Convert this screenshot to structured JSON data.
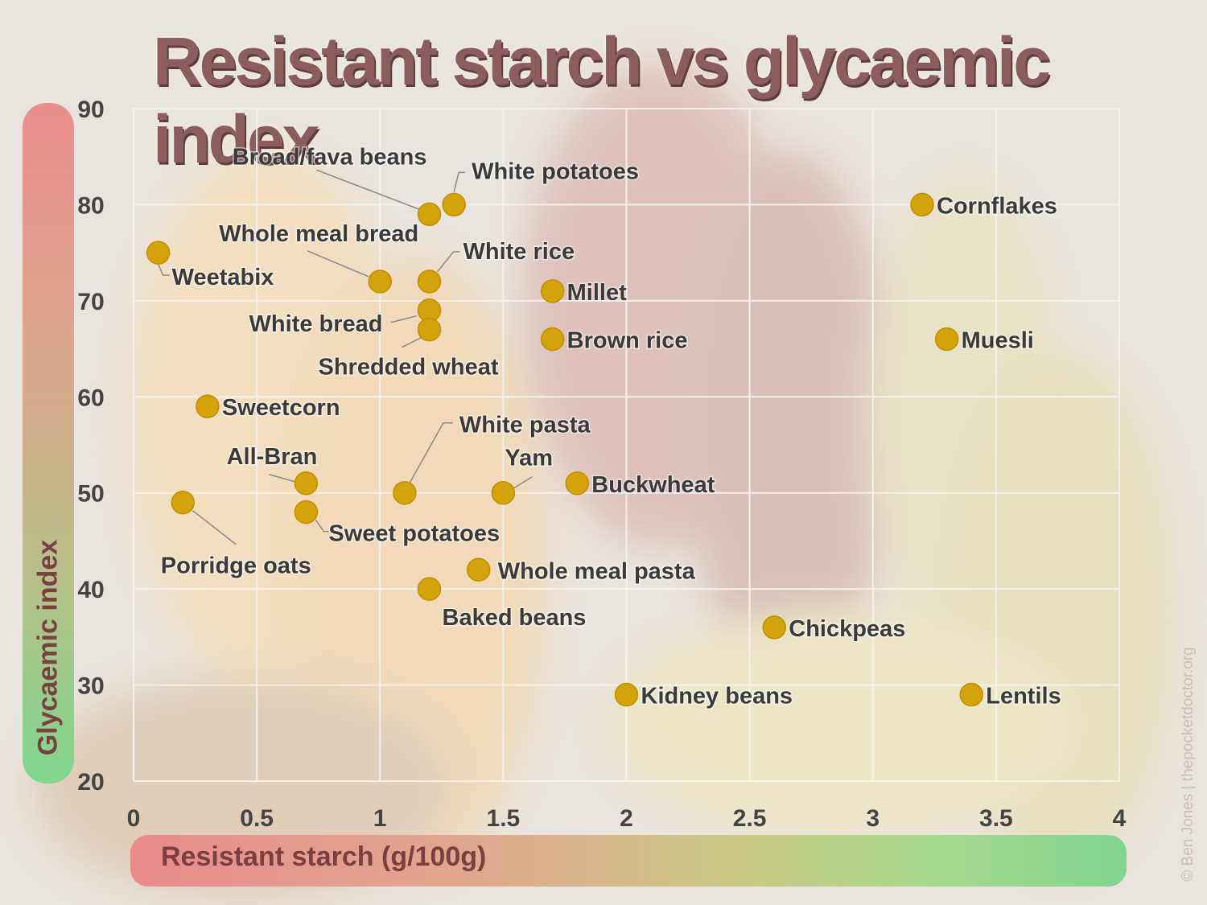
{
  "title": "Resistant starch vs glycaemic index",
  "credit": "© Ben Jones | thepocketdoctor.org",
  "colors": {
    "point": "#d4a20a",
    "point_edge": "#c08f00",
    "label": "#3a3a3a",
    "leader": "#8a8a8a",
    "grid": "#f4f1ec",
    "axis_label": "#7a3f41"
  },
  "chart_data": {
    "type": "scatter",
    "title": "Resistant starch vs glycaemic index",
    "xlabel": "Resistant starch (g/100g)",
    "ylabel": "Glycaemic index",
    "xlim": [
      0,
      4
    ],
    "ylim": [
      20,
      90
    ],
    "xticks": [
      "0",
      "0.5",
      "1",
      "1.5",
      "2",
      "2.5",
      "3",
      "3.5",
      "4"
    ],
    "yticks": [
      "20",
      "30",
      "40",
      "50",
      "60",
      "70",
      "80",
      "90"
    ],
    "grid": true,
    "points": [
      {
        "name": "Broad/fava beans",
        "x": 1.2,
        "y": 79
      },
      {
        "name": "White potatoes",
        "x": 1.3,
        "y": 80
      },
      {
        "name": "Cornflakes",
        "x": 3.2,
        "y": 80
      },
      {
        "name": "Whole meal bread",
        "x": 1.0,
        "y": 72
      },
      {
        "name": "Weetabix",
        "x": 0.1,
        "y": 75
      },
      {
        "name": "White rice",
        "x": 1.2,
        "y": 72
      },
      {
        "name": "Millet",
        "x": 1.7,
        "y": 71
      },
      {
        "name": "White bread",
        "x": 1.2,
        "y": 69
      },
      {
        "name": "Shredded wheat",
        "x": 1.2,
        "y": 67
      },
      {
        "name": "Brown rice",
        "x": 1.7,
        "y": 66
      },
      {
        "name": "Muesli",
        "x": 3.3,
        "y": 66
      },
      {
        "name": "Sweetcorn",
        "x": 0.3,
        "y": 59
      },
      {
        "name": "White pasta",
        "x": 1.1,
        "y": 50
      },
      {
        "name": "Yam",
        "x": 1.5,
        "y": 50
      },
      {
        "name": "All-Bran",
        "x": 0.7,
        "y": 51
      },
      {
        "name": "Buckwheat",
        "x": 1.8,
        "y": 51
      },
      {
        "name": "Porridge oats",
        "x": 0.2,
        "y": 49
      },
      {
        "name": "Sweet potatoes",
        "x": 0.7,
        "y": 48
      },
      {
        "name": "Whole meal pasta",
        "x": 1.4,
        "y": 42
      },
      {
        "name": "Baked beans",
        "x": 1.2,
        "y": 40
      },
      {
        "name": "Chickpeas",
        "x": 2.6,
        "y": 36
      },
      {
        "name": "Kidney beans",
        "x": 2.0,
        "y": 29
      },
      {
        "name": "Lentils",
        "x": 3.4,
        "y": 29
      }
    ]
  }
}
